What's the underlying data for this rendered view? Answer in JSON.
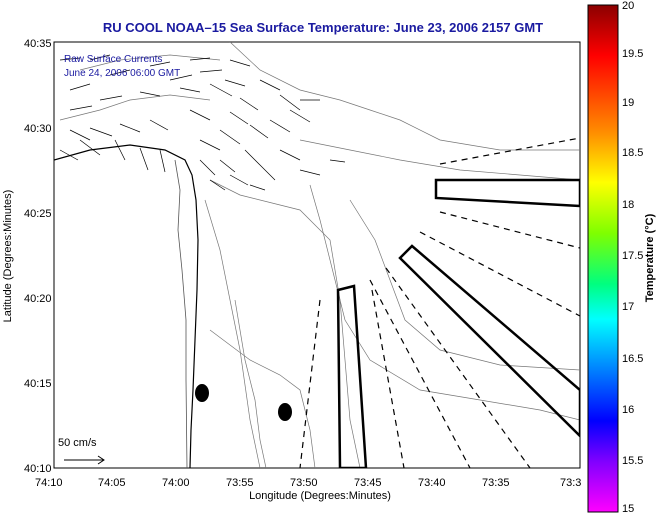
{
  "map": {
    "title": "RU COOL  NOAA–15  Sea Surface Temperature:  June 23, 2006 2157 GMT",
    "xlabel": "Longitude (Degrees:Minutes)",
    "ylabel": "Latitude (Degrees:Minutes)",
    "x_ticks": [
      "74:10",
      "74:05",
      "74:00",
      "73:55",
      "73:50",
      "73:45",
      "73:40",
      "73:35",
      "73:3"
    ],
    "y_ticks": [
      "40:35",
      "40:30",
      "40:25",
      "40:20",
      "40:15",
      "40:10"
    ],
    "legend_line1": "Raw Surface Currents",
    "legend_line2": "June 24, 2006 06:00 GMT",
    "scale_label": "50 cm/s",
    "features": [
      "shoreline",
      "bathymetry-contours",
      "surface-current-vectors",
      "survey-boxes",
      "buoy-markers"
    ]
  },
  "colorbar": {
    "label": "Temperature (°C)",
    "ticks": [
      "20",
      "19.5",
      "19",
      "18.5",
      "18",
      "17.5",
      "17",
      "16.5",
      "16",
      "15.5",
      "15"
    ],
    "colors": [
      "#8b0000",
      "#ff0000",
      "#ff8c00",
      "#ffff00",
      "#7fff00",
      "#00ff7f",
      "#00ffff",
      "#0080ff",
      "#0000ff",
      "#8000ff",
      "#ff00ff"
    ]
  }
}
